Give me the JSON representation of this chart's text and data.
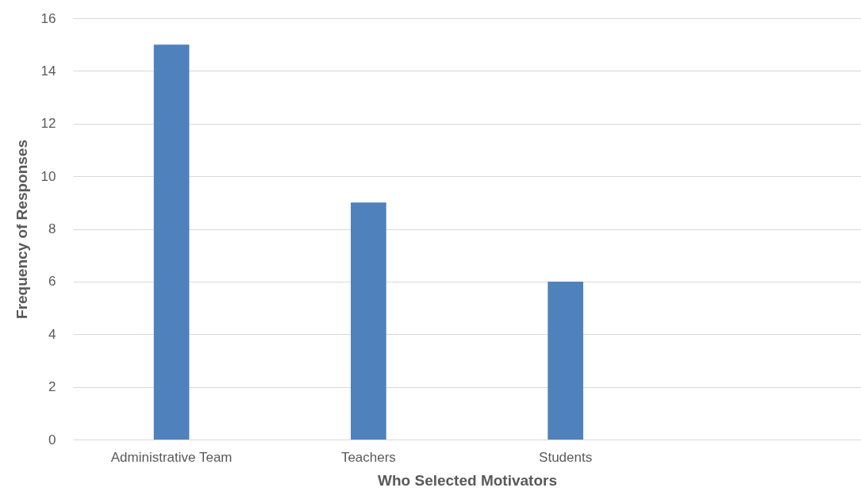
{
  "chart_data": {
    "type": "bar",
    "xlabel": "Who Selected Motivators",
    "ylabel": "Frequency of Responses",
    "categories": [
      "Administrative Team",
      "Teachers",
      "Students",
      null
    ],
    "values": [
      15,
      9,
      6,
      null
    ],
    "color": "#4f81bd",
    "ylim": [
      0,
      16
    ],
    "yticks": [
      0,
      2,
      4,
      6,
      8,
      10,
      12,
      14,
      16
    ],
    "grid": "y"
  }
}
